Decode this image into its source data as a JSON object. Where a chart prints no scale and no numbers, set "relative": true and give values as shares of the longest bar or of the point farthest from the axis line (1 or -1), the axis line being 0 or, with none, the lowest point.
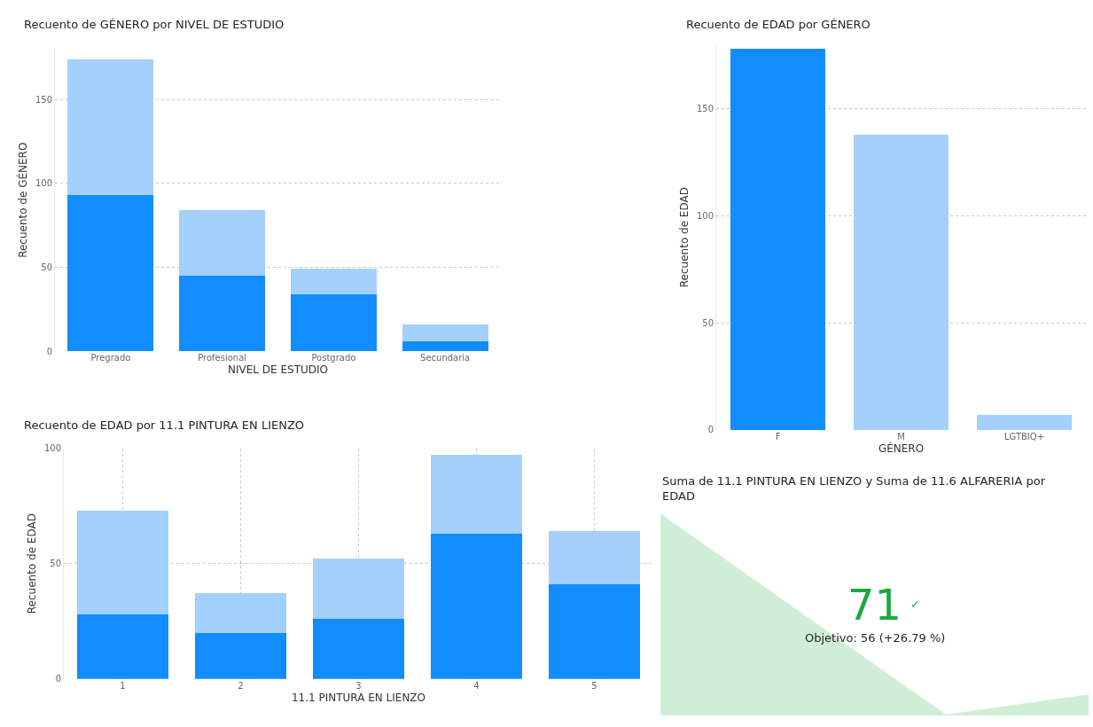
{
  "chart_data": [
    {
      "type": "bar",
      "title": "Recuento de GÉNERO por NIVEL DE ESTUDIO",
      "xlabel": "NIVEL DE ESTUDIO",
      "ylabel": "Recuento de GÉNERO",
      "categories": [
        "Pregrado",
        "Profesional",
        "Postgrado",
        "Secundaria"
      ],
      "stacked": true,
      "series": [
        {
          "color": "#118dff",
          "values": [
            93,
            45,
            34,
            6
          ]
        },
        {
          "color": "#a3d0fd",
          "values": [
            81,
            39,
            15,
            10
          ]
        }
      ],
      "ylim": [
        0,
        180
      ],
      "yticks": [
        0,
        50,
        100,
        150
      ],
      "grid": "y"
    },
    {
      "type": "bar",
      "title": "Recuento de EDAD por GÉNERO",
      "xlabel": "GÉNERO",
      "ylabel": "Recuento de EDAD",
      "categories": [
        "F",
        "M",
        "LGTBIQ+"
      ],
      "values": [
        178,
        138,
        7
      ],
      "colors": [
        "#118dff",
        "#a3d0fd",
        "#a3d0fd"
      ],
      "ylim": [
        0,
        180
      ],
      "yticks": [
        0,
        50,
        100,
        150
      ],
      "grid": "y"
    },
    {
      "type": "bar",
      "title": "Recuento de EDAD por 11.1 PINTURA EN LIENZO",
      "xlabel": "11.1 PINTURA EN LIENZO",
      "ylabel": "Recuento de EDAD",
      "categories": [
        "1",
        "2",
        "3",
        "4",
        "5"
      ],
      "stacked": true,
      "series": [
        {
          "color": "#118dff",
          "values": [
            28,
            20,
            26,
            63,
            41
          ]
        },
        {
          "color": "#a3d0fd",
          "values": [
            45,
            17,
            26,
            34,
            23
          ]
        }
      ],
      "ylim": [
        0,
        100
      ],
      "yticks": [
        0,
        50,
        100
      ],
      "grid": true
    },
    {
      "type": "area",
      "title": "Suma de 11.1 PINTURA EN LIENZO y Suma de 11.6 ALFARERIA por EDAD",
      "relative": true,
      "categories": [
        null,
        null,
        null,
        null
      ],
      "values": [
        1,
        0.5,
        0,
        0.1
      ],
      "color": "#d0eed6",
      "grid": false,
      "annotations": [
        "71",
        "✓",
        "Objetivo: 56 (+26.79 %)"
      ]
    }
  ]
}
